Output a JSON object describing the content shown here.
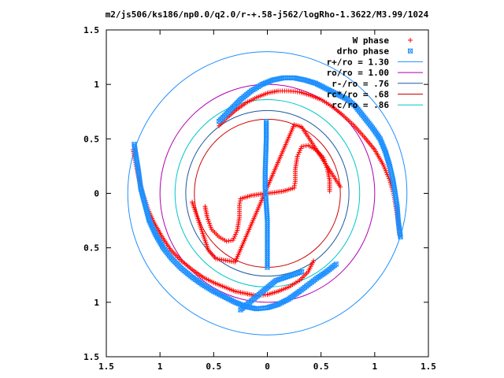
{
  "chart_data": {
    "type": "scatter",
    "title": "m2/js506/ks186/np0.0/q2.0/r-+.58-j562/logRho-1.3622/M3.99/1024",
    "xlim": [
      -1.5,
      1.5
    ],
    "ylim": [
      -1.5,
      1.5
    ],
    "x_ticks": [
      -1.5,
      -1,
      -0.5,
      0,
      0.5,
      1,
      1.5
    ],
    "y_ticks": [
      -1.5,
      -1,
      -0.5,
      0,
      0.5,
      1,
      1.5
    ],
    "x_tick_labels": [
      "1.5",
      "1",
      "0.5",
      "0",
      "0.5",
      "1",
      "1.5"
    ],
    "y_tick_labels": [
      "1.5",
      "1",
      "0.5",
      "0",
      "0.5",
      "1",
      "1.5"
    ],
    "legend_position": "top-right",
    "series": [
      {
        "name": "W phase",
        "marker": "plus",
        "color": "#ff0000",
        "segments": [
          [
            [
              -0.45,
              0.62
            ],
            [
              -0.38,
              0.69
            ],
            [
              -0.3,
              0.76
            ],
            [
              -0.2,
              0.83
            ],
            [
              -0.1,
              0.88
            ],
            [
              0.0,
              0.92
            ],
            [
              0.1,
              0.94
            ],
            [
              0.2,
              0.94
            ],
            [
              0.3,
              0.93
            ],
            [
              0.4,
              0.9
            ],
            [
              0.5,
              0.86
            ],
            [
              0.6,
              0.8
            ],
            [
              0.7,
              0.72
            ],
            [
              0.8,
              0.63
            ],
            [
              0.9,
              0.52
            ],
            [
              1.0,
              0.4
            ],
            [
              1.08,
              0.26
            ],
            [
              1.14,
              0.12
            ],
            [
              1.18,
              -0.02
            ],
            [
              1.2,
              -0.14
            ],
            [
              1.22,
              -0.27
            ],
            [
              1.23,
              -0.38
            ]
          ],
          [
            [
              -1.25,
              0.4
            ],
            [
              -1.23,
              0.3
            ],
            [
              -1.2,
              0.15
            ],
            [
              -1.16,
              0.0
            ],
            [
              -1.11,
              -0.15
            ],
            [
              -1.05,
              -0.28
            ],
            [
              -0.98,
              -0.4
            ],
            [
              -0.9,
              -0.52
            ],
            [
              -0.8,
              -0.62
            ],
            [
              -0.7,
              -0.7
            ],
            [
              -0.6,
              -0.77
            ],
            [
              -0.5,
              -0.82
            ],
            [
              -0.4,
              -0.86
            ],
            [
              -0.3,
              -0.9
            ],
            [
              -0.2,
              -0.92
            ],
            [
              -0.1,
              -0.94
            ],
            [
              0.0,
              -0.93
            ],
            [
              0.1,
              -0.9
            ],
            [
              0.2,
              -0.86
            ],
            [
              0.3,
              -0.8
            ],
            [
              0.38,
              -0.72
            ],
            [
              0.43,
              -0.62
            ]
          ],
          [
            [
              -0.58,
              -0.12
            ],
            [
              -0.56,
              -0.22
            ],
            [
              -0.52,
              -0.33
            ],
            [
              -0.45,
              -0.4
            ],
            [
              -0.38,
              -0.44
            ],
            [
              -0.32,
              -0.43
            ],
            [
              -0.28,
              -0.34
            ],
            [
              -0.26,
              -0.22
            ],
            [
              -0.26,
              -0.11
            ],
            [
              -0.25,
              -0.05
            ],
            [
              -0.15,
              -0.02
            ],
            [
              -0.05,
              -0.005
            ],
            [
              0.0,
              0.0
            ],
            [
              0.05,
              0.005
            ],
            [
              0.15,
              0.02
            ],
            [
              0.25,
              0.05
            ],
            [
              0.26,
              0.11
            ],
            [
              0.26,
              0.22
            ],
            [
              0.28,
              0.34
            ],
            [
              0.32,
              0.43
            ],
            [
              0.38,
              0.44
            ],
            [
              0.45,
              0.4
            ],
            [
              0.52,
              0.33
            ],
            [
              0.56,
              0.22
            ],
            [
              0.58,
              0.12
            ],
            [
              0.58,
              0.02
            ]
          ],
          [
            [
              -0.7,
              -0.08
            ],
            [
              -0.55,
              -0.52
            ],
            [
              -0.48,
              -0.6
            ],
            [
              -0.3,
              -0.63
            ],
            [
              0.25,
              0.63
            ],
            [
              0.32,
              0.61
            ],
            [
              0.68,
              0.06
            ]
          ]
        ]
      },
      {
        "name": "drho phase",
        "marker": "cross",
        "color": "#1e90ff",
        "segments": [
          [
            [
              -0.45,
              0.66
            ],
            [
              -0.35,
              0.76
            ],
            [
              -0.25,
              0.86
            ],
            [
              -0.15,
              0.94
            ],
            [
              -0.05,
              1.0
            ],
            [
              0.05,
              1.04
            ],
            [
              0.15,
              1.06
            ],
            [
              0.25,
              1.06
            ],
            [
              0.35,
              1.04
            ],
            [
              0.45,
              1.01
            ],
            [
              0.55,
              0.96
            ],
            [
              0.65,
              0.91
            ],
            [
              0.75,
              0.86
            ],
            [
              0.82,
              0.8
            ],
            [
              0.9,
              0.7
            ],
            [
              0.98,
              0.6
            ],
            [
              1.05,
              0.5
            ],
            [
              1.1,
              0.38
            ],
            [
              1.14,
              0.25
            ],
            [
              1.17,
              0.12
            ],
            [
              1.19,
              0.0
            ],
            [
              1.21,
              -0.13
            ],
            [
              1.22,
              -0.26
            ],
            [
              1.24,
              -0.4
            ]
          ],
          [
            [
              -1.24,
              0.45
            ],
            [
              -1.22,
              0.32
            ],
            [
              -1.2,
              0.2
            ],
            [
              -1.18,
              0.05
            ],
            [
              -1.14,
              -0.1
            ],
            [
              -1.1,
              -0.25
            ],
            [
              -1.04,
              -0.38
            ],
            [
              -0.97,
              -0.5
            ],
            [
              -0.89,
              -0.6
            ],
            [
              -0.8,
              -0.69
            ],
            [
              -0.7,
              -0.77
            ],
            [
              -0.6,
              -0.84
            ],
            [
              -0.5,
              -0.9
            ],
            [
              -0.4,
              -0.95
            ],
            [
              -0.3,
              -1.0
            ],
            [
              -0.2,
              -1.04
            ],
            [
              -0.1,
              -1.06
            ],
            [
              0.0,
              -1.05
            ],
            [
              0.1,
              -1.02
            ],
            [
              0.2,
              -0.97
            ],
            [
              0.3,
              -0.9
            ],
            [
              0.38,
              -0.84
            ],
            [
              0.46,
              -0.78
            ],
            [
              0.55,
              -0.72
            ],
            [
              0.64,
              -0.65
            ]
          ],
          [
            [
              -0.01,
              0.66
            ],
            [
              -0.01,
              0.5
            ],
            [
              -0.015,
              0.35
            ],
            [
              -0.02,
              0.2
            ],
            [
              -0.02,
              0.05
            ],
            [
              -0.01,
              -0.1
            ],
            [
              0.0,
              -0.25
            ],
            [
              0.0,
              -0.4
            ],
            [
              0.0,
              -0.55
            ],
            [
              0.0,
              -0.68
            ]
          ],
          [
            [
              -0.25,
              -1.07
            ],
            [
              0.08,
              -0.8
            ],
            [
              0.26,
              -0.74
            ],
            [
              0.32,
              -0.72
            ]
          ]
        ]
      }
    ],
    "circles": [
      {
        "name": "r+/ro = 1.30",
        "radius": 1.3,
        "color": "#1e90ff"
      },
      {
        "name": "ro/ro = 1.00",
        "radius": 1.0,
        "color": "#b000b0"
      },
      {
        "name": "r-/ro = .76",
        "radius": 0.76,
        "color": "#1e5aa0"
      },
      {
        "name": "rc*/ro = .68",
        "radius": 0.68,
        "color": "#cc0000"
      },
      {
        "name": "rc/ro = .86",
        "radius": 0.86,
        "color": "#00c8c8"
      }
    ]
  }
}
